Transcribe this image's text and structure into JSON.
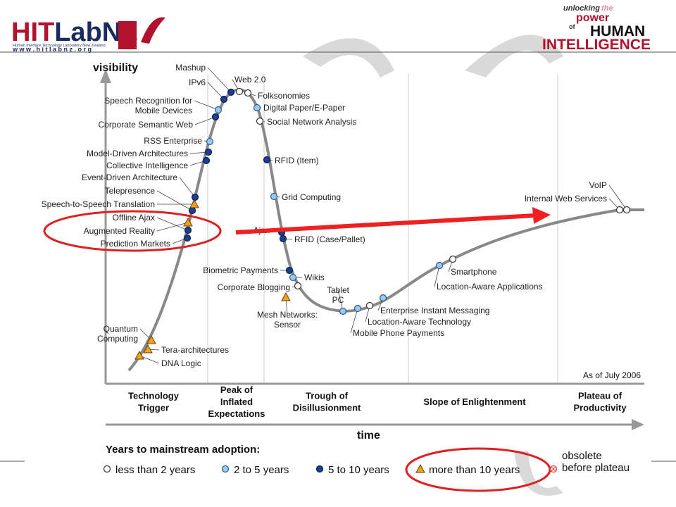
{
  "header": {
    "logo": [
      "HIT",
      "LabNZ"
    ],
    "logo_subtitle": "Human Interface Technology Laboratory New Zealand",
    "logo_url": "w w w . h i t l a b n z . o r g",
    "tagline": [
      "unlocking",
      "the",
      "power",
      "of",
      "HUMAN",
      "INTELLIGENCE"
    ]
  },
  "diagram": {
    "y_axis": "visibility",
    "x_axis": "time",
    "as_of": "As of July 2006",
    "phases": [
      [
        "Technology",
        "Trigger"
      ],
      [
        "Peak of",
        "Inflated",
        "Expectations"
      ],
      [
        "Trough of",
        "Disillusionment"
      ],
      [
        "Slope of Enlightenment"
      ],
      [
        "Plateau of",
        "Productivity"
      ]
    ],
    "legend": {
      "title": "Years to mainstream adoption:",
      "groups": [
        {
          "label": "less than 2 years",
          "technologies": [
            "Web 2.0",
            "Folksonomies",
            "Social Network Analysis",
            "Corporate Blogging",
            "Location-Aware Technology",
            "Smartphone",
            "Internal Web Services",
            "VoIP"
          ]
        },
        {
          "label": "2 to 5 years",
          "technologies": [
            [
              "Speech Recognition for",
              "Mobile Devices"
            ],
            "RSS Enterprise",
            "Digital Paper/E-Paper",
            "Grid Computing",
            "Wikis",
            [
              "Tablet",
              "PC"
            ],
            "Mobile Phone Payments",
            "Enterprise Instant Messaging",
            "Location-Aware Applications"
          ]
        },
        {
          "label": "5 to 10 years",
          "technologies": [
            "Mashup",
            "IPv6",
            "Corporate Semantic Web",
            "Model-Driven Architectures",
            "Collective Intelligence",
            "Event-Driven Architecture",
            "Telepresence",
            "Offline Ajax",
            "Prediction Markets",
            "RFID (Item)",
            "Ajax",
            "RFID (Case/Pallet)",
            "Biometric Payments"
          ]
        },
        {
          "label": "more than 10 years",
          "technologies": [
            [
              "Quantum",
              "Computing"
            ],
            "Tera-architectures",
            "DNA Logic",
            "Speech-to-Speech Translation",
            "Augmented Reality",
            [
              "Mesh Networks:",
              "Sensor"
            ]
          ]
        },
        {
          "label": [
            "obsolete",
            "before plateau"
          ],
          "technologies": []
        }
      ]
    }
  }
}
